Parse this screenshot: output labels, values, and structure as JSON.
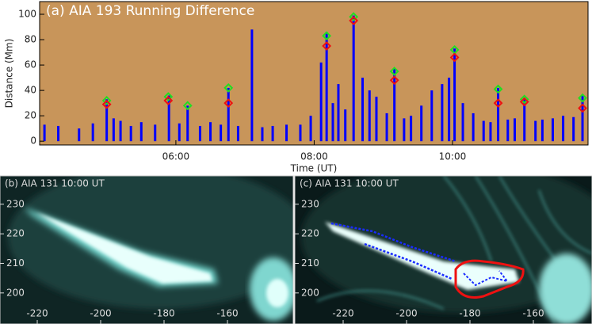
{
  "chart_data": [
    {
      "type": "scatter",
      "title": "(a) AIA 193 Running Difference",
      "x_label": "Time (UT)",
      "y_label": "Distance (Mm)",
      "background": "#c8955a",
      "xlim": [
        4.03,
        11.96
      ],
      "ylim": [
        -3,
        110
      ],
      "xticks": [
        {
          "value": 6,
          "label": "06:00"
        },
        {
          "value": 8,
          "label": "08:00"
        },
        {
          "value": 10,
          "label": "10:00"
        }
      ],
      "yticks": [
        0,
        20,
        40,
        60,
        80,
        100
      ],
      "series": [
        {
          "name": "detections",
          "color": "#0000ff",
          "marker": "vline",
          "x": [
            4.1,
            4.3,
            4.6,
            4.8,
            5.0,
            5.1,
            5.2,
            5.35,
            5.5,
            5.7,
            5.9,
            6.05,
            6.17,
            6.35,
            6.5,
            6.65,
            6.76,
            6.9,
            7.1,
            7.25,
            7.4,
            7.6,
            7.8,
            7.95,
            8.1,
            8.18,
            8.27,
            8.35,
            8.45,
            8.57,
            8.7,
            8.8,
            8.9,
            9.05,
            9.16,
            9.3,
            9.4,
            9.55,
            9.7,
            9.85,
            9.95,
            10.03,
            10.15,
            10.3,
            10.45,
            10.55,
            10.66,
            10.8,
            10.9,
            11.04,
            11.2,
            11.3,
            11.45,
            11.6,
            11.75,
            11.88
          ],
          "values": [
            13,
            12,
            10,
            14,
            33,
            18,
            16,
            12,
            15,
            13,
            36,
            14,
            28,
            12,
            15,
            13,
            42,
            12,
            88,
            11,
            12,
            13,
            13,
            20,
            62,
            86,
            30,
            45,
            25,
            99,
            50,
            40,
            35,
            22,
            57,
            18,
            20,
            28,
            40,
            45,
            50,
            73,
            30,
            22,
            16,
            15,
            42,
            17,
            18,
            34,
            16,
            17,
            18,
            20,
            19,
            36
          ]
        },
        {
          "name": "green",
          "color": "#22dd22",
          "marker": "diamond",
          "x": [
            5.0,
            5.89,
            6.17,
            6.76,
            8.18,
            8.57,
            9.16,
            10.03,
            10.66,
            11.04,
            11.88
          ],
          "values": [
            32,
            35,
            28,
            42,
            83,
            98,
            55,
            72,
            41,
            33,
            34
          ]
        },
        {
          "name": "red",
          "color": "#ee1111",
          "marker": "diamond",
          "x": [
            5.0,
            5.89,
            6.76,
            8.18,
            8.57,
            9.16,
            10.03,
            10.66,
            11.04,
            11.88
          ],
          "values": [
            29,
            32,
            30,
            75,
            95,
            48,
            66,
            30,
            31,
            26
          ]
        }
      ]
    },
    {
      "type": "image",
      "title": "(b) AIA 131 10:00 UT",
      "xlim": [
        -231.75,
        -139.25
      ],
      "ylim": [
        189.5,
        239.6
      ],
      "xticks": [
        -220,
        -200,
        -180,
        -160
      ],
      "yticks": [
        200,
        210,
        220,
        230
      ]
    },
    {
      "type": "image",
      "title": "(c) AIA 131 10:00 UT",
      "xlim": [
        -235.25,
        -141.5
      ],
      "ylim": [
        189.5,
        239.6
      ],
      "xticks": [
        -220,
        -200,
        -180,
        -160
      ],
      "yticks": [
        200,
        210,
        220,
        230
      ]
    }
  ]
}
